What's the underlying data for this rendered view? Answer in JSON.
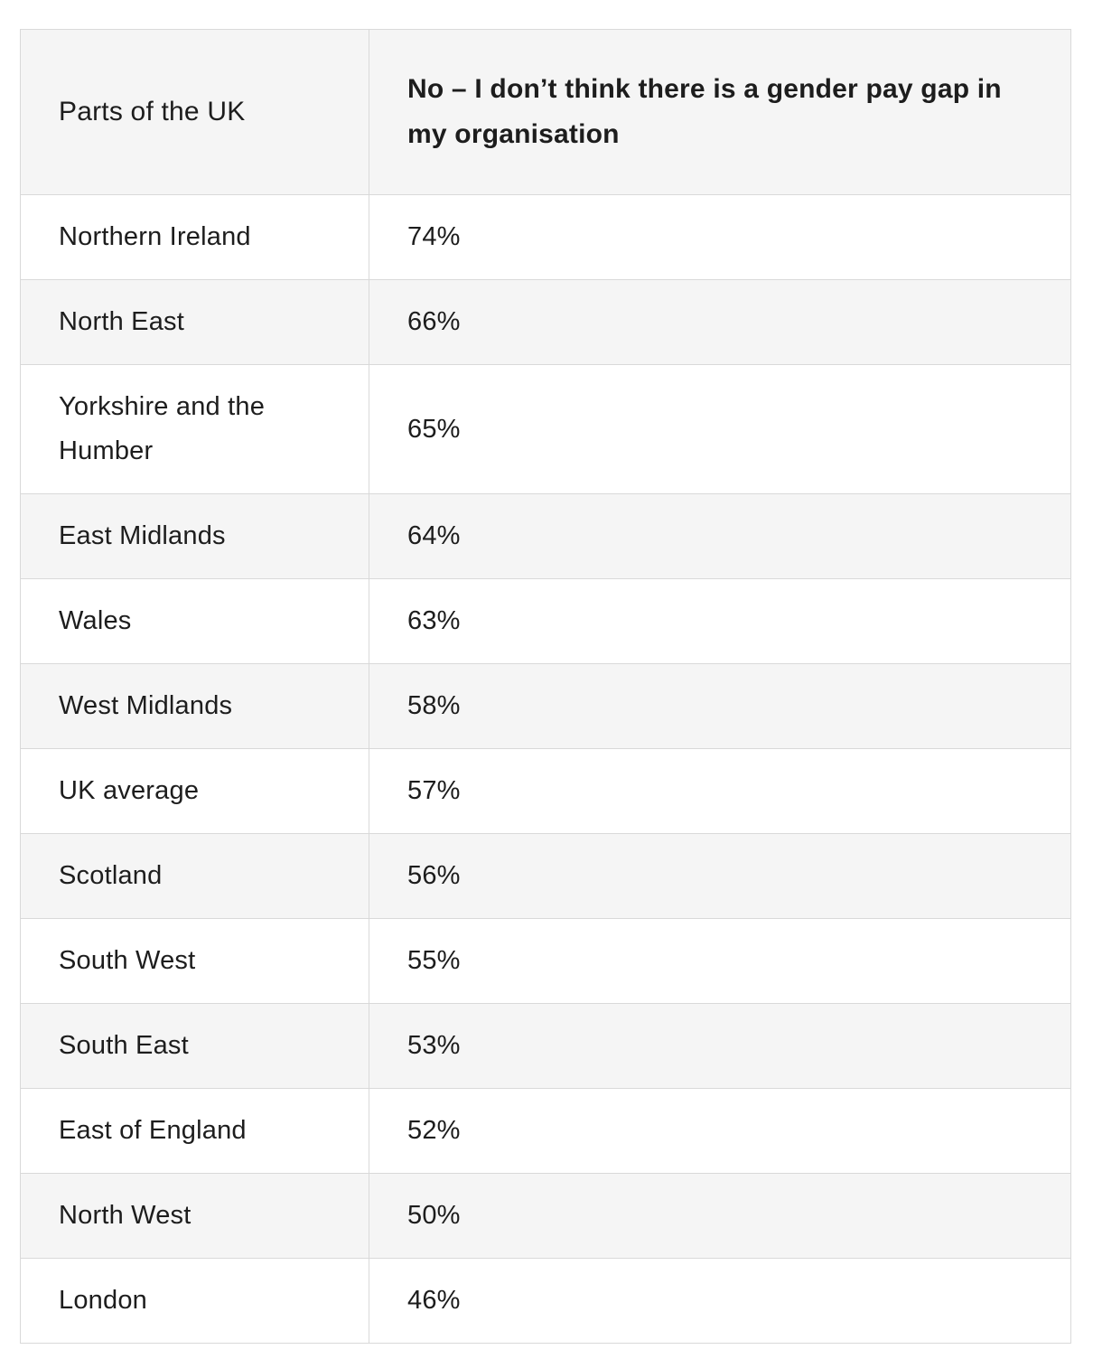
{
  "table": {
    "columns": [
      "Parts of the UK",
      "No – I don’t think there is a gender pay gap in my organisation"
    ],
    "rows": [
      {
        "region": "Northern Ireland",
        "value": "74%"
      },
      {
        "region": "North East",
        "value": "66%"
      },
      {
        "region": "Yorkshire and the Humber",
        "value": "65%"
      },
      {
        "region": "East Midlands",
        "value": "64%"
      },
      {
        "region": "Wales",
        "value": "63%"
      },
      {
        "region": "West Midlands",
        "value": "58%"
      },
      {
        "region": "UK average",
        "value": "57%"
      },
      {
        "region": "Scotland",
        "value": "56%"
      },
      {
        "region": "South West",
        "value": "55%"
      },
      {
        "region": "South East",
        "value": "53%"
      },
      {
        "region": "East of England",
        "value": "52%"
      },
      {
        "region": "North West",
        "value": "50%"
      },
      {
        "region": "London",
        "value": "46%"
      }
    ]
  },
  "colors": {
    "text": "#1d1d1d",
    "header_background": "#f5f5f5",
    "row_background": "#ffffff",
    "row_alt_background": "#f5f5f5",
    "border": "#d9d9d9",
    "page_background": "#ffffff"
  },
  "chart_data": {
    "type": "table",
    "title": "No – I don’t think there is a gender pay gap in my organisation",
    "columns": [
      "Parts of the UK",
      "No – I don’t think there is a gender pay gap in my organisation"
    ],
    "categories": [
      "Northern Ireland",
      "North East",
      "Yorkshire and the Humber",
      "East Midlands",
      "Wales",
      "West Midlands",
      "UK average",
      "Scotland",
      "South West",
      "South East",
      "East of England",
      "North West",
      "London"
    ],
    "values": [
      74,
      66,
      65,
      64,
      63,
      58,
      57,
      56,
      55,
      53,
      52,
      50,
      46
    ],
    "value_unit": "%",
    "layout_hints": {
      "sorted": "descending by value",
      "striped_rows": true,
      "grid": true
    }
  }
}
